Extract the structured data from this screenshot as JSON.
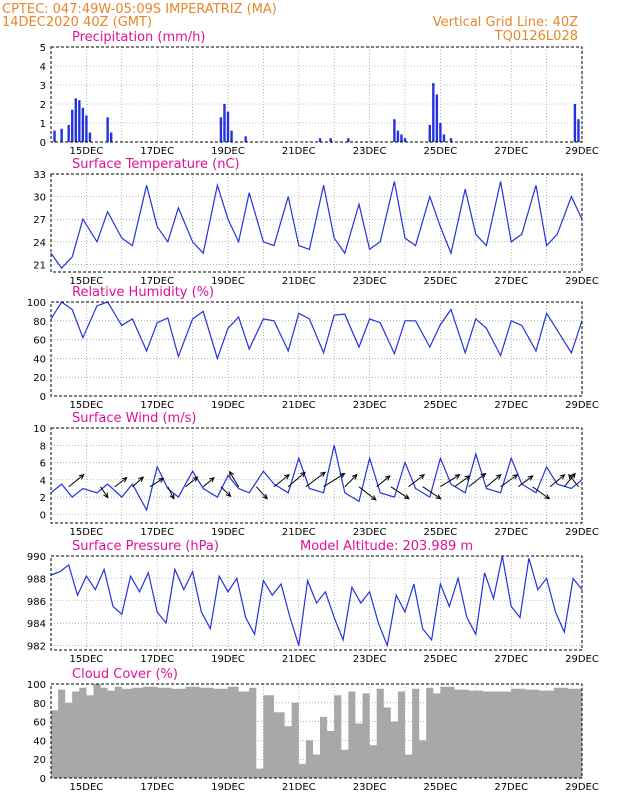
{
  "header": {
    "left_line1": "CPTEC:   047:49W-05:09S   IMPERATRIZ (MA)",
    "left_line2": "14DEC2020 40Z (GMT)",
    "right_line1": "Vertical Grid Line: 40Z",
    "right_line2": "TQ0126L028"
  },
  "colors": {
    "header": "#e8862a",
    "title": "#e0109a",
    "line": "#2233dd",
    "cloud": "#a8a8a8",
    "wind": "#000000"
  },
  "chart_data": [
    {
      "type": "bar",
      "title": "Precipitation (mm/h)",
      "ylim": [
        0,
        5
      ],
      "yticks": [
        0,
        1,
        2,
        3,
        4,
        5
      ],
      "xticks": [
        "15DEC",
        "17DEC",
        "19DEC",
        "21DEC",
        "23DEC",
        "25DEC",
        "27DEC",
        "29DEC"
      ],
      "x": [
        14.1,
        14.3,
        14.5,
        14.6,
        14.7,
        14.8,
        14.9,
        15.0,
        15.1,
        15.6,
        15.7,
        18.8,
        18.9,
        19.0,
        19.1,
        19.5,
        21.6,
        21.9,
        22.4,
        23.7,
        23.8,
        23.9,
        24.0,
        24.7,
        24.8,
        24.9,
        25.0,
        25.1,
        25.3,
        28.8,
        28.9
      ],
      "values": [
        0.6,
        0.7,
        0.9,
        1.7,
        2.3,
        2.2,
        1.8,
        1.4,
        0.5,
        1.3,
        0.5,
        1.3,
        2.0,
        1.6,
        0.6,
        0.3,
        0.2,
        0.2,
        0.2,
        1.2,
        0.6,
        0.4,
        0.2,
        0.9,
        3.1,
        2.5,
        1.0,
        0.4,
        0.2,
        2.0,
        1.2
      ]
    },
    {
      "type": "line",
      "title": "Surface Temperature (nC)",
      "ylim": [
        20,
        33
      ],
      "yticks": [
        21,
        24,
        27,
        30,
        33
      ],
      "xticks": [
        "15DEC",
        "17DEC",
        "19DEC",
        "21DEC",
        "23DEC",
        "25DEC",
        "27DEC",
        "29DEC"
      ],
      "x": [
        14.0,
        14.3,
        14.6,
        14.9,
        15.3,
        15.6,
        16.0,
        16.3,
        16.7,
        17.0,
        17.3,
        17.6,
        18.0,
        18.3,
        18.7,
        19.0,
        19.3,
        19.6,
        20.0,
        20.3,
        20.7,
        21.0,
        21.3,
        21.7,
        22.0,
        22.3,
        22.7,
        23.0,
        23.3,
        23.7,
        24.0,
        24.3,
        24.7,
        25.0,
        25.3,
        25.7,
        26.0,
        26.3,
        26.7,
        27.0,
        27.3,
        27.7,
        28.0,
        28.3,
        28.7,
        29.0
      ],
      "values": [
        22.5,
        20.5,
        22.0,
        27.0,
        24.0,
        28.0,
        24.5,
        23.5,
        31.5,
        26.0,
        24.0,
        28.5,
        24.0,
        22.5,
        31.5,
        27.0,
        24.0,
        30.5,
        24.0,
        23.5,
        30.0,
        23.5,
        23.0,
        31.5,
        24.5,
        22.5,
        29.0,
        23.0,
        24.0,
        32.0,
        24.5,
        23.5,
        30.0,
        26.0,
        22.5,
        31.0,
        25.0,
        23.5,
        32.0,
        24.0,
        25.0,
        31.5,
        23.5,
        25.0,
        30.0,
        27.0
      ]
    },
    {
      "type": "line",
      "title": "Relative Humidity (%)",
      "ylim": [
        0,
        100
      ],
      "yticks": [
        0,
        20,
        40,
        60,
        80,
        100
      ],
      "xticks": [
        "15DEC",
        "17DEC",
        "19DEC",
        "21DEC",
        "23DEC",
        "25DEC",
        "27DEC",
        "29DEC"
      ],
      "x": [
        14.0,
        14.3,
        14.6,
        14.9,
        15.3,
        15.6,
        16.0,
        16.3,
        16.7,
        17.0,
        17.3,
        17.6,
        18.0,
        18.3,
        18.7,
        19.0,
        19.3,
        19.6,
        20.0,
        20.3,
        20.7,
        21.0,
        21.3,
        21.7,
        22.0,
        22.3,
        22.7,
        23.0,
        23.3,
        23.7,
        24.0,
        24.3,
        24.7,
        25.0,
        25.3,
        25.7,
        26.0,
        26.3,
        26.7,
        27.0,
        27.3,
        27.7,
        28.0,
        28.3,
        28.7,
        29.0
      ],
      "values": [
        82,
        100,
        92,
        62,
        96,
        100,
        75,
        82,
        48,
        78,
        83,
        42,
        82,
        90,
        40,
        72,
        84,
        50,
        82,
        80,
        48,
        88,
        82,
        46,
        86,
        87,
        52,
        82,
        78,
        45,
        80,
        80,
        52,
        76,
        92,
        46,
        82,
        72,
        43,
        80,
        75,
        48,
        88,
        70,
        46,
        80
      ]
    },
    {
      "type": "line",
      "title": "Surface Wind (m/s)",
      "ylim": [
        -1,
        10
      ],
      "yticks": [
        0,
        2,
        4,
        6,
        8,
        10
      ],
      "xticks": [
        "15DEC",
        "17DEC",
        "19DEC",
        "21DEC",
        "23DEC",
        "25DEC",
        "27DEC",
        "29DEC"
      ],
      "x": [
        14.0,
        14.3,
        14.6,
        14.9,
        15.3,
        15.6,
        16.0,
        16.3,
        16.7,
        17.0,
        17.3,
        17.6,
        18.0,
        18.3,
        18.7,
        19.0,
        19.3,
        19.6,
        20.0,
        20.3,
        20.7,
        21.0,
        21.3,
        21.7,
        22.0,
        22.3,
        22.7,
        23.0,
        23.3,
        23.7,
        24.0,
        24.3,
        24.7,
        25.0,
        25.3,
        25.7,
        26.0,
        26.3,
        26.7,
        27.0,
        27.3,
        27.7,
        28.0,
        28.3,
        28.7,
        29.0
      ],
      "values": [
        2.5,
        3.5,
        2.0,
        3.0,
        2.5,
        3.5,
        2.0,
        3.5,
        0.5,
        5.5,
        3.0,
        2.0,
        5.0,
        3.0,
        2.0,
        4.5,
        3.0,
        2.5,
        5.0,
        3.5,
        2.5,
        6.5,
        3.0,
        2.5,
        8.0,
        2.5,
        1.5,
        6.5,
        2.5,
        2.0,
        6.0,
        3.0,
        2.0,
        6.5,
        3.5,
        2.5,
        7.0,
        3.0,
        2.5,
        6.5,
        3.5,
        2.5,
        5.5,
        3.5,
        3.0,
        4.0
      ],
      "wind_vectors": [
        {
          "x": 14.5,
          "u": 2.5,
          "v": 2.0
        },
        {
          "x": 15.4,
          "u": 1.2,
          "v": -1.8
        },
        {
          "x": 15.8,
          "u": 2.0,
          "v": 1.5
        },
        {
          "x": 16.3,
          "u": 1.8,
          "v": 1.6
        },
        {
          "x": 16.8,
          "u": 2.2,
          "v": 1.4
        },
        {
          "x": 17.3,
          "u": 1.0,
          "v": -2.0
        },
        {
          "x": 17.8,
          "u": 2.0,
          "v": 1.6
        },
        {
          "x": 18.3,
          "u": 1.8,
          "v": 1.5
        },
        {
          "x": 18.8,
          "u": 1.6,
          "v": -1.6
        },
        {
          "x": 19.3,
          "u": -1.5,
          "v": 2.5
        },
        {
          "x": 19.8,
          "u": 1.8,
          "v": -2.0
        },
        {
          "x": 20.3,
          "u": 2.5,
          "v": 2.0
        },
        {
          "x": 20.7,
          "u": 2.8,
          "v": 2.4
        },
        {
          "x": 21.2,
          "u": 3.2,
          "v": 2.4
        },
        {
          "x": 21.7,
          "u": 3.5,
          "v": 2.2
        },
        {
          "x": 22.3,
          "u": 2.0,
          "v": 2.0
        },
        {
          "x": 22.7,
          "u": 2.8,
          "v": -2.2
        },
        {
          "x": 23.2,
          "u": 2.2,
          "v": 1.8
        },
        {
          "x": 23.6,
          "u": 3.0,
          "v": -2.0
        },
        {
          "x": 24.1,
          "u": 2.6,
          "v": 2.0
        },
        {
          "x": 24.5,
          "u": 3.0,
          "v": -2.0
        },
        {
          "x": 25.0,
          "u": 3.2,
          "v": 2.0
        },
        {
          "x": 25.4,
          "u": 2.5,
          "v": 1.8
        },
        {
          "x": 25.8,
          "u": 2.8,
          "v": 2.2
        },
        {
          "x": 26.3,
          "u": 2.4,
          "v": 2.0
        },
        {
          "x": 26.7,
          "u": 2.8,
          "v": 2.0
        },
        {
          "x": 27.2,
          "u": 2.4,
          "v": 1.8
        },
        {
          "x": 27.6,
          "u": 2.8,
          "v": -2.0
        },
        {
          "x": 28.1,
          "u": 2.4,
          "v": 2.0
        },
        {
          "x": 28.5,
          "u": 1.8,
          "v": 2.2
        },
        {
          "x": 28.9,
          "u": -1.6,
          "v": 2.0
        }
      ]
    },
    {
      "type": "line",
      "title": "Surface Pressure (hPa)",
      "annotation": "Model Altitude: 203.989  m",
      "ylim": [
        981.6,
        990
      ],
      "yticks": [
        982,
        984,
        986,
        988,
        990
      ],
      "xticks": [
        "15DEC",
        "17DEC",
        "19DEC",
        "21DEC",
        "23DEC",
        "25DEC",
        "27DEC",
        "29DEC"
      ],
      "x": [
        14.0,
        14.25,
        14.5,
        14.75,
        15.0,
        15.25,
        15.5,
        15.75,
        16.0,
        16.25,
        16.5,
        16.75,
        17.0,
        17.25,
        17.5,
        17.75,
        18.0,
        18.25,
        18.5,
        18.75,
        19.0,
        19.25,
        19.5,
        19.75,
        20.0,
        20.25,
        20.5,
        20.75,
        21.0,
        21.25,
        21.5,
        21.75,
        22.0,
        22.25,
        22.5,
        22.75,
        23.0,
        23.25,
        23.5,
        23.75,
        24.0,
        24.25,
        24.5,
        24.75,
        25.0,
        25.25,
        25.5,
        25.75,
        26.0,
        26.25,
        26.5,
        26.75,
        27.0,
        27.25,
        27.5,
        27.75,
        28.0,
        28.25,
        28.5,
        28.75,
        29.0
      ],
      "values": [
        988.3,
        988.6,
        989.2,
        986.5,
        988.2,
        987.0,
        988.8,
        985.5,
        984.8,
        988.2,
        986.8,
        988.5,
        985.0,
        984.0,
        988.8,
        987.0,
        988.6,
        985.0,
        983.5,
        988.2,
        986.8,
        988.0,
        984.5,
        983.0,
        987.8,
        986.5,
        987.5,
        984.5,
        982.0,
        987.8,
        985.8,
        986.8,
        984.5,
        982.5,
        987.2,
        985.8,
        986.8,
        984.0,
        982.0,
        986.5,
        985.0,
        987.5,
        983.5,
        982.5,
        987.5,
        985.5,
        988.0,
        984.5,
        983.0,
        988.5,
        986.2,
        990.0,
        985.5,
        984.5,
        989.8,
        987.0,
        988.0,
        985.0,
        983.2,
        988.0,
        987.0
      ]
    },
    {
      "type": "area",
      "title": "Cloud Cover (%)",
      "ylim": [
        0,
        100
      ],
      "yticks": [
        0,
        20,
        40,
        60,
        80,
        100
      ],
      "xticks": [
        "15DEC",
        "17DEC",
        "19DEC",
        "21DEC",
        "23DEC",
        "25DEC",
        "27DEC",
        "29DEC"
      ],
      "x": [
        14.0,
        14.2,
        14.4,
        14.6,
        14.8,
        15.0,
        15.2,
        15.4,
        15.6,
        15.8,
        16.0,
        16.3,
        16.6,
        17.0,
        17.4,
        17.8,
        18.2,
        18.6,
        19.0,
        19.3,
        19.6,
        19.8,
        20.0,
        20.3,
        20.6,
        20.8,
        21.0,
        21.2,
        21.4,
        21.6,
        21.8,
        22.0,
        22.2,
        22.4,
        22.6,
        22.8,
        23.0,
        23.2,
        23.4,
        23.6,
        23.8,
        24.0,
        24.2,
        24.4,
        24.6,
        24.8,
        25.0,
        25.4,
        25.8,
        26.2,
        26.6,
        27.0,
        27.4,
        27.8,
        28.2,
        28.6,
        29.0
      ],
      "values": [
        72,
        94,
        80,
        92,
        96,
        88,
        100,
        96,
        93,
        97,
        95,
        96,
        97,
        96,
        95,
        97,
        96,
        95,
        97,
        92,
        96,
        10,
        88,
        70,
        55,
        80,
        15,
        40,
        25,
        65,
        50,
        88,
        30,
        92,
        58,
        90,
        35,
        95,
        75,
        60,
        92,
        25,
        95,
        40,
        96,
        90,
        97,
        94,
        93,
        92,
        92,
        95,
        94,
        93,
        96,
        95,
        97
      ]
    }
  ]
}
